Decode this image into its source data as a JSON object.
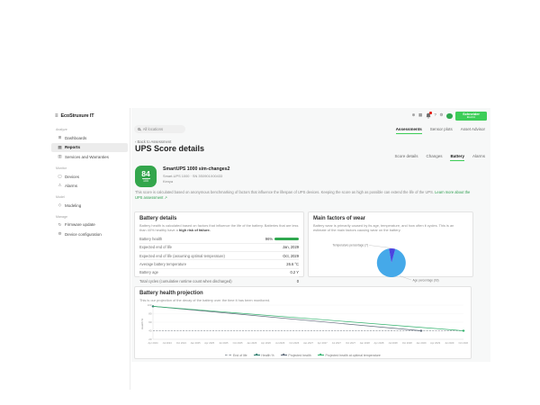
{
  "colors": {
    "accent_green": "#3dcd58",
    "score_green": "#33a64c",
    "health_bar_green": "#2fa84f",
    "pie_age_blue": "#45a9e9",
    "pie_temp_indigo": "#4b44e0",
    "notification_red": "#e2231a"
  },
  "sidebar": {
    "logo_text": "EcoStruxure IT",
    "sections": [
      {
        "header": "Analyze",
        "items": [
          {
            "label": "Dashboards",
            "icon": "dashboards-icon"
          },
          {
            "label": "Reports",
            "icon": "reports-icon",
            "active": true
          },
          {
            "label": "Services and Warranties",
            "icon": "services-warranties-icon"
          }
        ]
      },
      {
        "header": "Monitor",
        "items": [
          {
            "label": "Devices",
            "icon": "devices-icon"
          },
          {
            "label": "Alarms",
            "icon": "alarms-icon"
          }
        ]
      },
      {
        "header": "Model",
        "items": [
          {
            "label": "Modeling",
            "icon": "modeling-icon"
          }
        ]
      },
      {
        "header": "Manage",
        "items": [
          {
            "label": "Firmware update",
            "icon": "firmware-update-icon"
          },
          {
            "label": "Device configuration",
            "icon": "device-configuration-icon"
          }
        ]
      }
    ]
  },
  "header": {
    "search": {
      "placeholder": "All locations"
    },
    "icons": [
      "globe-icon",
      "apps-icon",
      "notifications-icon",
      "help-icon",
      "settings-icon"
    ],
    "brand": {
      "line1": "Schneider",
      "line2": "Electric"
    }
  },
  "tabs_primary": [
    {
      "label": "Assessments",
      "active": true
    },
    {
      "label": "Sensor plots"
    },
    {
      "label": "Asset Advisor"
    }
  ],
  "page": {
    "back_link": "‹ Back to Assessment",
    "title": "UPS Score details"
  },
  "tabs_secondary": [
    {
      "label": "Score details"
    },
    {
      "label": "Changes"
    },
    {
      "label": "Battery",
      "active": true
    },
    {
      "label": "Alarms"
    }
  ],
  "score": {
    "value": "84",
    "max": "100",
    "device_name": "SmartUPS 1000 sim-changes2",
    "device_meta": "Smart-UPS 1000 · SN 3S0901X00433",
    "device_location": "Kenya",
    "description": "This score is calculated based on anonymous benchmarking of factors that influence the lifespan of UPS devices. Keeping the score as high as possible can extend the life of the UPS. ",
    "learn_more": "Learn more about the UPS assessment ↗"
  },
  "battery_details": {
    "title": "Battery details",
    "description": "Battery health is calculated based on factors that influence the life of the battery. Batteries that are less than 40% healthy have a ",
    "description_bold": "high risk of failure.",
    "health_percent": 96,
    "rows": [
      {
        "label": "Battery health",
        "value": "96%"
      },
      {
        "label": "Expected end of life",
        "value": "Jan, 2029"
      },
      {
        "label": "Expected end of life (assuming optimal temperature)",
        "value": "Oct, 2029"
      },
      {
        "label": "Average battery temperature",
        "value": "26.6 °C"
      },
      {
        "label": "Battery age",
        "value": "0.2 Y"
      },
      {
        "label": "Total cycles (cumulative runtime count when discharged)",
        "value": "0"
      }
    ]
  },
  "wear": {
    "title": "Main factors of wear",
    "description": "Battery wear is primarily caused by its age, temperature, and how often it cycles. This is an estimate of the main factors causing wear on the battery."
  },
  "projection": {
    "title": "Battery health projection",
    "subtitle": "This is our projection of the decay of the battery over the time it has been monitored."
  },
  "chart_data": [
    {
      "type": "pie",
      "title": "Main factors of wear",
      "slices": [
        {
          "label": "Age percentage (93)",
          "value": 93,
          "color": "#45a9e9"
        },
        {
          "label": "Temperature percentage (7)",
          "value": 7,
          "color": "#4b44e0"
        }
      ],
      "legend_position": "callout-labels"
    },
    {
      "type": "line",
      "title": "Battery health projection",
      "xlabel": "",
      "ylabel": "Health %",
      "ylim": [
        20,
        100
      ],
      "yticks": [
        100,
        80,
        60,
        40,
        20
      ],
      "grid": true,
      "legend_position": "bottom",
      "x_categories": [
        "Apr 2024",
        "Jul 2024",
        "Oct 2024",
        "Jan 2025",
        "Apr 2025",
        "Jul 2025",
        "Oct 2025",
        "Jan 2026",
        "Apr 2026",
        "Jul 2026",
        "Oct 2026",
        "Jan 2027",
        "Apr 2027",
        "Jul 2027",
        "Oct 2027",
        "Jan 2028",
        "Apr 2028",
        "Jul 2028",
        "Oct 2028",
        "Jan 2029",
        "Apr 2029",
        "Jul 2029",
        "Oct 2029"
      ],
      "series": [
        {
          "name": "End of life",
          "color": "#9aa0a6",
          "dash": true,
          "points": [
            [
              0,
              40
            ],
            [
              22,
              40
            ]
          ],
          "markers": []
        },
        {
          "name": "Health %",
          "color": "#2e7d6e",
          "dash": false,
          "points": [
            [
              0,
              97
            ]
          ],
          "markers": [
            [
              0,
              97
            ]
          ]
        },
        {
          "name": "Projected health",
          "color": "#5f6b7a",
          "dash": false,
          "points": [
            [
              0,
              97
            ],
            [
              19,
              40
            ]
          ],
          "markers": [
            [
              19,
              40
            ]
          ]
        },
        {
          "name": "Projected health at optimal temperature",
          "color": "#34b36f",
          "dash": false,
          "points": [
            [
              0,
              97
            ],
            [
              22,
              40
            ]
          ],
          "markers": [
            [
              22,
              40
            ]
          ]
        }
      ]
    }
  ]
}
